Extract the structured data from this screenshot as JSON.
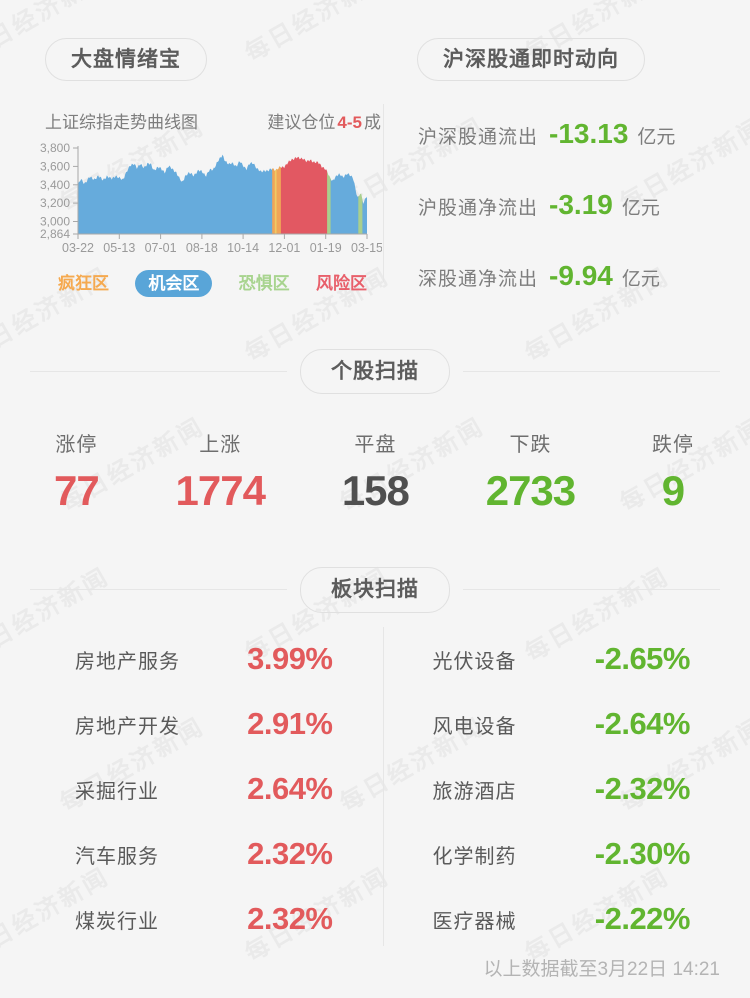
{
  "page": {
    "watermark": "每日经济新闻",
    "background": "#f5f5f5"
  },
  "theme": {
    "red": "#e25a5c",
    "green": "#61b530",
    "blue": "#66abdc",
    "gray_text": "#5c5c5c",
    "muted_text": "#7d7d7d",
    "divider": "#e6e6e6"
  },
  "market_mood": {
    "title": "大盘情绪宝",
    "chart_caption": "上证综指走势曲线图",
    "advice_prefix": "建议仓位",
    "advice_value": "4-5",
    "advice_suffix": "成",
    "legend": [
      {
        "label": "疯狂区",
        "color": "#f5a94f",
        "active": false
      },
      {
        "label": "机会区",
        "color": "#59a5d8",
        "active": true
      },
      {
        "label": "恐惧区",
        "color": "#a8d48f",
        "active": false
      },
      {
        "label": "风险区",
        "color": "#e8606b",
        "active": false
      }
    ]
  },
  "chart_data": {
    "type": "area",
    "title": "上证综指走势曲线图",
    "x_ticks": [
      "03-22",
      "05-13",
      "07-01",
      "08-18",
      "10-14",
      "12-01",
      "01-19",
      "03-15"
    ],
    "y_ticks": [
      {
        "label": "3,800",
        "value": 3800
      },
      {
        "label": "3,600",
        "value": 3600
      },
      {
        "label": "3,400",
        "value": 3400
      },
      {
        "label": "3,200",
        "value": 3200
      },
      {
        "label": "3,000",
        "value": 3000
      },
      {
        "label": "2,864",
        "value": 2864
      }
    ],
    "ylim": [
      2864,
      3800
    ],
    "zones": [
      {
        "from": 0.0,
        "to": 0.672,
        "color": "#66abdc",
        "name": "机会区"
      },
      {
        "from": 0.672,
        "to": 0.681,
        "color": "#f0a558",
        "name": "疯狂区"
      },
      {
        "from": 0.681,
        "to": 0.687,
        "color": "#eecb66",
        "name": "疯狂区"
      },
      {
        "from": 0.687,
        "to": 0.702,
        "color": "#f0a558",
        "name": "疯狂区"
      },
      {
        "from": 0.702,
        "to": 0.862,
        "color": "#e25862",
        "name": "风险区"
      },
      {
        "from": 0.862,
        "to": 0.874,
        "color": "#a9cf8d",
        "name": "恐惧区"
      },
      {
        "from": 0.874,
        "to": 0.97,
        "color": "#66abdc",
        "name": "机会区"
      },
      {
        "from": 0.97,
        "to": 0.984,
        "color": "#a9cf8d",
        "name": "恐惧区"
      },
      {
        "from": 0.984,
        "to": 1.0,
        "color": "#66abdc",
        "name": "机会区"
      }
    ],
    "waypoints": [
      [
        0.0,
        3400
      ],
      [
        0.01,
        3455
      ],
      [
        0.022,
        3415
      ],
      [
        0.04,
        3480
      ],
      [
        0.055,
        3460
      ],
      [
        0.07,
        3495
      ],
      [
        0.085,
        3450
      ],
      [
        0.1,
        3495
      ],
      [
        0.115,
        3460
      ],
      [
        0.13,
        3500
      ],
      [
        0.143,
        3470
      ],
      [
        0.155,
        3450
      ],
      [
        0.165,
        3530
      ],
      [
        0.18,
        3600
      ],
      [
        0.195,
        3635
      ],
      [
        0.205,
        3580
      ],
      [
        0.215,
        3620
      ],
      [
        0.228,
        3590
      ],
      [
        0.24,
        3630
      ],
      [
        0.252,
        3620
      ],
      [
        0.262,
        3560
      ],
      [
        0.275,
        3590
      ],
      [
        0.286,
        3575
      ],
      [
        0.3,
        3540
      ],
      [
        0.312,
        3600
      ],
      [
        0.325,
        3575
      ],
      [
        0.338,
        3545
      ],
      [
        0.35,
        3470
      ],
      [
        0.36,
        3425
      ],
      [
        0.372,
        3505
      ],
      [
        0.385,
        3525
      ],
      [
        0.4,
        3505
      ],
      [
        0.415,
        3550
      ],
      [
        0.429,
        3545
      ],
      [
        0.443,
        3500
      ],
      [
        0.455,
        3555
      ],
      [
        0.468,
        3570
      ],
      [
        0.48,
        3635
      ],
      [
        0.492,
        3685
      ],
      [
        0.5,
        3725
      ],
      [
        0.51,
        3660
      ],
      [
        0.522,
        3615
      ],
      [
        0.535,
        3640
      ],
      [
        0.548,
        3600
      ],
      [
        0.56,
        3650
      ],
      [
        0.571,
        3615
      ],
      [
        0.583,
        3570
      ],
      [
        0.595,
        3630
      ],
      [
        0.607,
        3640
      ],
      [
        0.62,
        3570
      ],
      [
        0.632,
        3540
      ],
      [
        0.645,
        3560
      ],
      [
        0.658,
        3545
      ],
      [
        0.672,
        3580
      ],
      [
        0.686,
        3560
      ],
      [
        0.7,
        3590
      ],
      [
        0.714,
        3600
      ],
      [
        0.728,
        3640
      ],
      [
        0.742,
        3680
      ],
      [
        0.755,
        3700
      ],
      [
        0.768,
        3680
      ],
      [
        0.78,
        3690
      ],
      [
        0.792,
        3650
      ],
      [
        0.805,
        3665
      ],
      [
        0.818,
        3650
      ],
      [
        0.83,
        3640
      ],
      [
        0.843,
        3600
      ],
      [
        0.855,
        3580
      ],
      [
        0.862,
        3540
      ],
      [
        0.87,
        3480
      ],
      [
        0.88,
        3445
      ],
      [
        0.892,
        3490
      ],
      [
        0.905,
        3510
      ],
      [
        0.918,
        3490
      ],
      [
        0.93,
        3515
      ],
      [
        0.942,
        3500
      ],
      [
        0.952,
        3480
      ],
      [
        0.958,
        3390
      ],
      [
        0.963,
        3310
      ],
      [
        0.968,
        3240
      ],
      [
        0.975,
        3300
      ],
      [
        0.982,
        3290
      ],
      [
        0.988,
        3180
      ],
      [
        0.994,
        3270
      ],
      [
        1.0,
        3255
      ]
    ]
  },
  "flows": {
    "title": "沪深股通即时动向",
    "items": [
      {
        "label": "沪深股通流出",
        "value": "-13.13",
        "unit": "亿元"
      },
      {
        "label": "沪股通净流出",
        "value": "-3.19",
        "unit": "亿元"
      },
      {
        "label": "深股通净流出",
        "value": "-9.94",
        "unit": "亿元"
      }
    ]
  },
  "stocks": {
    "title": "个股扫描",
    "items": [
      {
        "label": "涨停",
        "value": "77",
        "tone": "up"
      },
      {
        "label": "上涨",
        "value": "1774",
        "tone": "up"
      },
      {
        "label": "平盘",
        "value": "158",
        "tone": "flat"
      },
      {
        "label": "下跌",
        "value": "2733",
        "tone": "down"
      },
      {
        "label": "跌停",
        "value": "9",
        "tone": "down"
      }
    ]
  },
  "sectors": {
    "title": "板块扫描",
    "left": [
      {
        "name": "房地产服务",
        "change": "3.99%"
      },
      {
        "name": "房地产开发",
        "change": "2.91%"
      },
      {
        "name": "采掘行业",
        "change": "2.64%"
      },
      {
        "name": "汽车服务",
        "change": "2.32%"
      },
      {
        "name": "煤炭行业",
        "change": "2.32%"
      }
    ],
    "right": [
      {
        "name": "光伏设备",
        "change": "-2.65%"
      },
      {
        "name": "风电设备",
        "change": "-2.64%"
      },
      {
        "name": "旅游酒店",
        "change": "-2.32%"
      },
      {
        "name": "化学制药",
        "change": "-2.30%"
      },
      {
        "name": "医疗器械",
        "change": "-2.22%"
      }
    ]
  },
  "footer": {
    "note": "以上数据截至3月22日 14:21"
  }
}
